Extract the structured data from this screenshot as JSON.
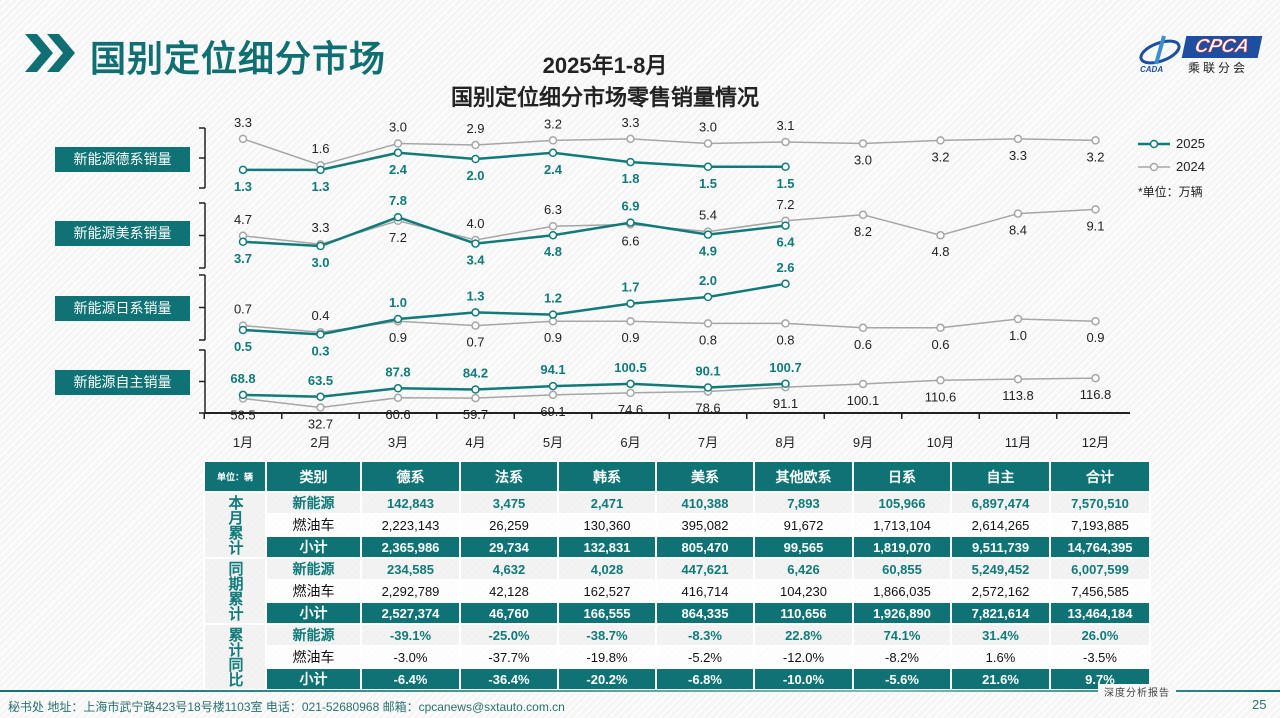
{
  "header": {
    "title": "国别定位细分市场",
    "chart_title_line1": "2025年1-8月",
    "chart_title_line2": "国别定位细分市场零售销量情况",
    "logo_text": "CPCA",
    "logo_sub": "乘联分会",
    "logo_mark": "CADA"
  },
  "colors": {
    "accent": "#0f7376",
    "series_2025": "#117a7a",
    "series_2024": "#a6a6a6"
  },
  "chart_data": {
    "type": "line",
    "categories": [
      "1月",
      "2月",
      "3月",
      "4月",
      "5月",
      "6月",
      "7月",
      "8月",
      "9月",
      "10月",
      "11月",
      "12月"
    ],
    "legend": [
      "2025",
      "2024"
    ],
    "legend_position": "right",
    "unit_note": "*单位：万辆",
    "panels": [
      {
        "label": "新能源德系销量",
        "series": [
          {
            "name": "2025",
            "values": [
              1.3,
              1.3,
              2.4,
              2.0,
              2.4,
              1.8,
              1.5,
              1.5
            ]
          },
          {
            "name": "2024",
            "values": [
              3.3,
              1.6,
              3.0,
              2.9,
              3.2,
              3.3,
              3.0,
              3.1,
              3.0,
              3.2,
              3.3,
              3.2
            ]
          }
        ]
      },
      {
        "label": "新能源美系销量",
        "series": [
          {
            "name": "2025",
            "values": [
              3.7,
              3.0,
              7.8,
              3.4,
              4.8,
              6.9,
              4.9,
              6.4
            ]
          },
          {
            "name": "2024",
            "values": [
              4.7,
              3.3,
              7.2,
              4.0,
              6.3,
              6.6,
              5.4,
              7.2,
              8.2,
              4.8,
              8.4,
              9.1
            ]
          }
        ]
      },
      {
        "label": "新能源日系销量",
        "series": [
          {
            "name": "2025",
            "values": [
              0.5,
              0.3,
              1.0,
              1.3,
              1.2,
              1.7,
              2.0,
              2.6
            ]
          },
          {
            "name": "2024",
            "values": [
              0.7,
              0.4,
              0.9,
              0.7,
              0.9,
              0.9,
              0.8,
              0.8,
              0.6,
              0.6,
              1.0,
              0.9
            ]
          }
        ]
      },
      {
        "label": "新能源自主销量",
        "series": [
          {
            "name": "2025",
            "values": [
              68.8,
              63.5,
              87.8,
              84.2,
              94.1,
              100.5,
              90.1,
              100.7
            ]
          },
          {
            "name": "2024",
            "values": [
              58.5,
              32.7,
              60.6,
              59.7,
              69.1,
              74.6,
              78.6,
              91.1,
              100.1,
              110.6,
              113.8,
              116.8
            ]
          }
        ]
      }
    ]
  },
  "table": {
    "unit": "单位：辆",
    "headers": [
      "类别",
      "德系",
      "法系",
      "韩系",
      "美系",
      "其他欧系",
      "日系",
      "自主",
      "合计"
    ],
    "groups": [
      {
        "name": "本月累计",
        "rows": [
          {
            "type": "nev",
            "label": "新能源",
            "cells": [
              "142,843",
              "3,475",
              "2,471",
              "410,388",
              "7,893",
              "105,966",
              "6,897,474",
              "7,570,510"
            ]
          },
          {
            "type": "ice",
            "label": "燃油车",
            "cells": [
              "2,223,143",
              "26,259",
              "130,360",
              "395,082",
              "91,672",
              "1,713,104",
              "2,614,265",
              "7,193,885"
            ]
          },
          {
            "type": "sub",
            "label": "小计",
            "cells": [
              "2,365,986",
              "29,734",
              "132,831",
              "805,470",
              "99,565",
              "1,819,070",
              "9,511,739",
              "14,764,395"
            ]
          }
        ]
      },
      {
        "name": "同期累计",
        "rows": [
          {
            "type": "nev",
            "label": "新能源",
            "cells": [
              "234,585",
              "4,632",
              "4,028",
              "447,621",
              "6,426",
              "60,855",
              "5,249,452",
              "6,007,599"
            ]
          },
          {
            "type": "ice",
            "label": "燃油车",
            "cells": [
              "2,292,789",
              "42,128",
              "162,527",
              "416,714",
              "104,230",
              "1,866,035",
              "2,572,162",
              "7,456,585"
            ]
          },
          {
            "type": "sub",
            "label": "小计",
            "cells": [
              "2,527,374",
              "46,760",
              "166,555",
              "864,335",
              "110,656",
              "1,926,890",
              "7,821,614",
              "13,464,184"
            ]
          }
        ]
      },
      {
        "name": "累计同比",
        "rows": [
          {
            "type": "nev",
            "label": "新能源",
            "cells": [
              "-39.1%",
              "-25.0%",
              "-38.7%",
              "-8.3%",
              "22.8%",
              "74.1%",
              "31.4%",
              "26.0%"
            ]
          },
          {
            "type": "ice",
            "label": "燃油车",
            "cells": [
              "-3.0%",
              "-37.7%",
              "-19.8%",
              "-5.2%",
              "-12.0%",
              "-8.2%",
              "1.6%",
              "-3.5%"
            ]
          },
          {
            "type": "sub",
            "label": "小计",
            "cells": [
              "-6.4%",
              "-36.4%",
              "-20.2%",
              "-6.8%",
              "-10.0%",
              "-5.6%",
              "21.6%",
              "9.7%"
            ]
          }
        ]
      }
    ]
  },
  "footer": {
    "text": "秘书处  地址：上海市武宁路423号18号楼1103室  电话：021-52680968  邮箱：cpcanews@sxtauto.com.cn",
    "report_tag": "深度分析报告",
    "page": "25"
  }
}
